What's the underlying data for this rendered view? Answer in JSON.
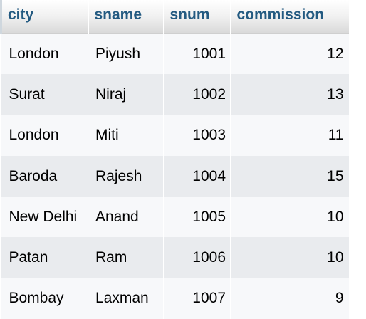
{
  "columns": {
    "city": "city",
    "sname": "sname",
    "snum": "snum",
    "commission": "commission"
  },
  "rows": [
    {
      "city": "London",
      "sname": "Piyush",
      "snum": "1001",
      "commission": "12"
    },
    {
      "city": "Surat",
      "sname": "Niraj",
      "snum": "1002",
      "commission": "13"
    },
    {
      "city": "London",
      "sname": "Miti",
      "snum": "1003",
      "commission": "11"
    },
    {
      "city": "Baroda",
      "sname": "Rajesh",
      "snum": "1004",
      "commission": "15"
    },
    {
      "city": "New Delhi",
      "sname": "Anand",
      "snum": "1005",
      "commission": "10"
    },
    {
      "city": "Patan",
      "sname": "Ram",
      "snum": "1006",
      "commission": "10"
    },
    {
      "city": "Bombay",
      "sname": "Laxman",
      "snum": "1007",
      "commission": "9"
    }
  ],
  "colors": {
    "header_text": "#235a81",
    "row_odd": "#f7f8fa",
    "row_even": "#e9ebee"
  }
}
